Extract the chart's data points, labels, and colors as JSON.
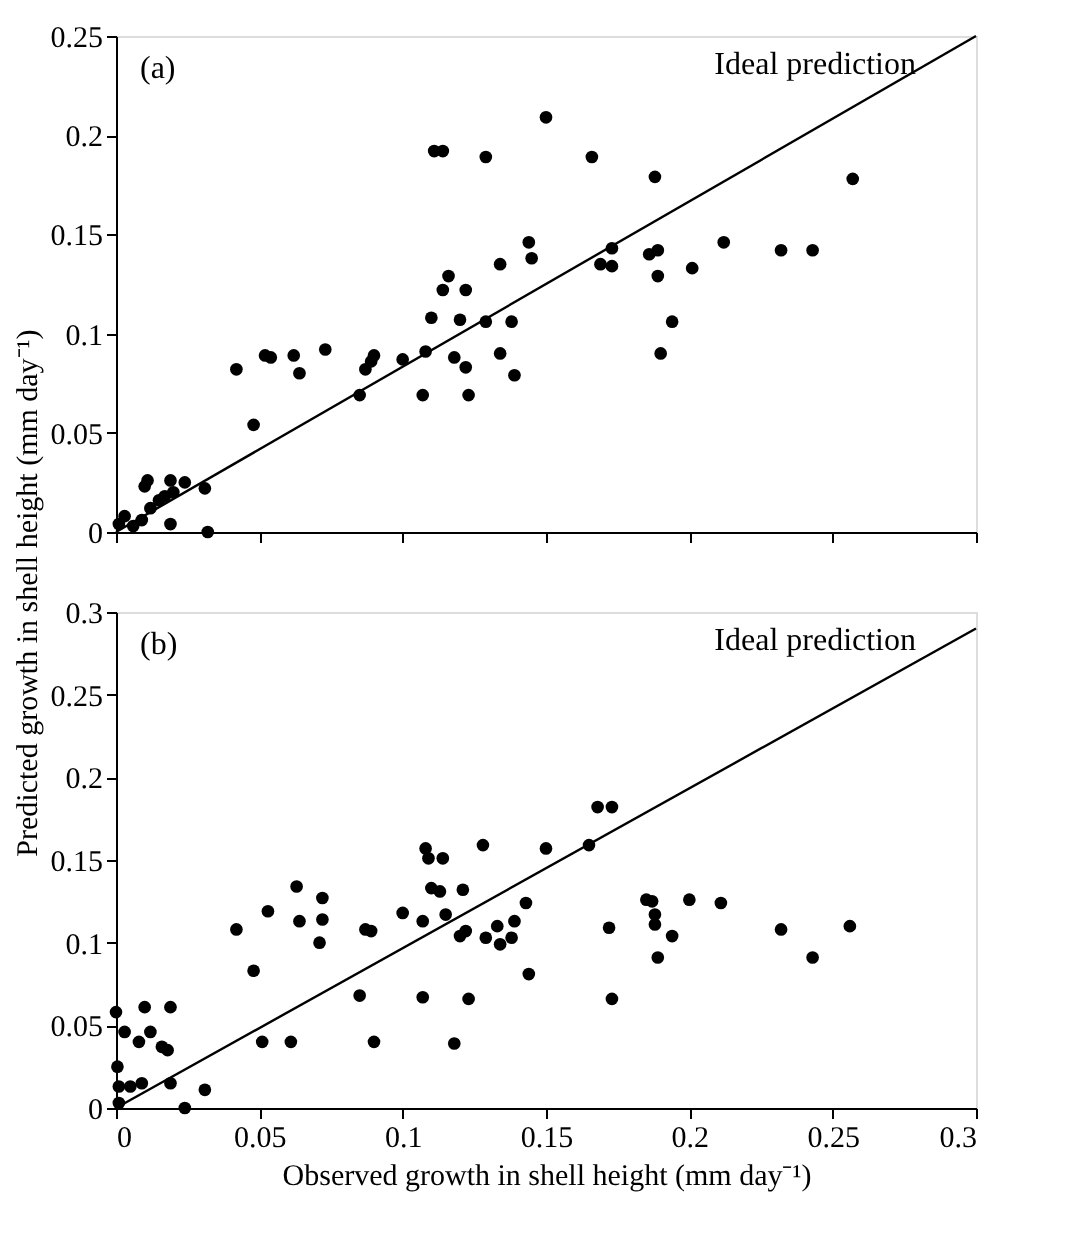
{
  "chart_data": [
    {
      "type": "scatter",
      "ylabel": "Predicted growth in shell height (mm day⁻¹)",
      "annotations": [
        "(a)",
        "Ideal prediction"
      ],
      "xlim": [
        0,
        0.3
      ],
      "xticks": [
        0,
        0.05,
        0.1,
        0.15,
        0.2,
        0.25,
        0.3
      ],
      "ylim": [
        0,
        0.25
      ],
      "yticks": [
        0,
        0.05,
        0.1,
        0.15,
        0.2,
        0.25
      ],
      "tick_labels": "y",
      "grid": false,
      "series": [
        {
          "color": "#000000",
          "marker": "circle",
          "x": [
            0.042,
            0.048,
            0.052,
            0.054,
            0.062,
            0.064,
            0.073,
            0.085,
            0.087,
            0.089,
            0.09,
            0.1,
            0.107,
            0.108,
            0.11,
            0.111,
            0.114,
            0.114,
            0.116,
            0.118,
            0.122,
            0.12,
            0.122,
            0.123,
            0.129,
            0.129,
            0.134,
            0.134,
            0.138,
            0.139,
            0.144,
            0.145,
            0.15,
            0.166,
            0.169,
            0.173,
            0.173,
            0.186,
            0.189,
            0.188,
            0.189,
            0.19,
            0.194,
            0.201,
            0.212,
            0.232,
            0.243,
            0.257,
            0.01,
            0.011,
            0.017,
            0.019,
            0.024,
            0.031,
            0.001,
            0.006,
            0.009,
            0.019,
            0.032,
            0.012,
            0.015,
            0.02,
            0.003
          ],
          "values": [
            0.082,
            0.054,
            0.089,
            0.088,
            0.089,
            0.08,
            0.092,
            0.069,
            0.082,
            0.086,
            0.089,
            0.087,
            0.069,
            0.091,
            0.108,
            0.192,
            0.192,
            0.122,
            0.129,
            0.088,
            0.122,
            0.107,
            0.083,
            0.069,
            0.189,
            0.106,
            0.09,
            0.135,
            0.106,
            0.079,
            0.146,
            0.138,
            0.209,
            0.189,
            0.135,
            0.134,
            0.143,
            0.14,
            0.142,
            0.179,
            0.129,
            0.09,
            0.106,
            0.133,
            0.146,
            0.142,
            0.142,
            0.178,
            0.023,
            0.026,
            0.018,
            0.026,
            0.025,
            0.022,
            0.004,
            0.003,
            0.006,
            0.004,
            0.0,
            0.012,
            0.016,
            0.02,
            0.008
          ]
        },
        {
          "type": "line",
          "color": "#000000",
          "line_style": "solid",
          "marker": "none",
          "x": [
            0,
            0.3
          ],
          "values": [
            0,
            0.25
          ]
        }
      ]
    },
    {
      "type": "scatter",
      "xlabel": "Observed growth in shell height (mm day⁻¹)",
      "annotations": [
        "(b)",
        "Ideal prediction"
      ],
      "xlim": [
        0,
        0.3
      ],
      "xticks": [
        0,
        0.05,
        0.1,
        0.15,
        0.2,
        0.25,
        0.3
      ],
      "ylim": [
        0,
        0.3
      ],
      "yticks": [
        0,
        0.05,
        0.1,
        0.15,
        0.2,
        0.25,
        0.3
      ],
      "grid": false,
      "series": [
        {
          "color": "#000000",
          "marker": "circle",
          "x": [
            0.042,
            0.048,
            0.053,
            0.063,
            0.064,
            0.072,
            0.072,
            0.071,
            0.085,
            0.087,
            0.089,
            0.1,
            0.107,
            0.107,
            0.108,
            0.109,
            0.114,
            0.11,
            0.113,
            0.115,
            0.121,
            0.12,
            0.122,
            0.123,
            0.128,
            0.129,
            0.133,
            0.134,
            0.138,
            0.139,
            0.143,
            0.144,
            0.15,
            0.165,
            0.168,
            0.173,
            0.172,
            0.173,
            0.185,
            0.187,
            0.188,
            0.188,
            0.189,
            0.194,
            0.2,
            0.211,
            0.232,
            0.243,
            0.256,
            0.051,
            0.061,
            0.09,
            0.118,
            0.0,
            0.01,
            0.019,
            0.003,
            0.008,
            0.012,
            0.016,
            0.018,
            0.0005,
            0.001,
            0.005,
            0.009,
            0.019,
            0.031,
            0.024,
            0.001
          ],
          "values": [
            0.108,
            0.083,
            0.119,
            0.134,
            0.113,
            0.127,
            0.114,
            0.1,
            0.068,
            0.108,
            0.107,
            0.118,
            0.113,
            0.067,
            0.157,
            0.151,
            0.151,
            0.133,
            0.131,
            0.117,
            0.132,
            0.104,
            0.107,
            0.066,
            0.159,
            0.103,
            0.11,
            0.099,
            0.103,
            0.113,
            0.124,
            0.081,
            0.157,
            0.159,
            0.182,
            0.182,
            0.109,
            0.066,
            0.126,
            0.125,
            0.117,
            0.111,
            0.091,
            0.104,
            0.126,
            0.124,
            0.108,
            0.091,
            0.11,
            0.04,
            0.04,
            0.04,
            0.039,
            0.058,
            0.061,
            0.061,
            0.046,
            0.04,
            0.046,
            0.037,
            0.035,
            0.025,
            0.013,
            0.013,
            0.015,
            0.015,
            0.011,
            0.0,
            0.003
          ]
        },
        {
          "type": "line",
          "color": "#000000",
          "line_style": "solid",
          "marker": "none",
          "x": [
            0,
            0.3
          ],
          "values": [
            0,
            0.29
          ]
        }
      ]
    }
  ]
}
